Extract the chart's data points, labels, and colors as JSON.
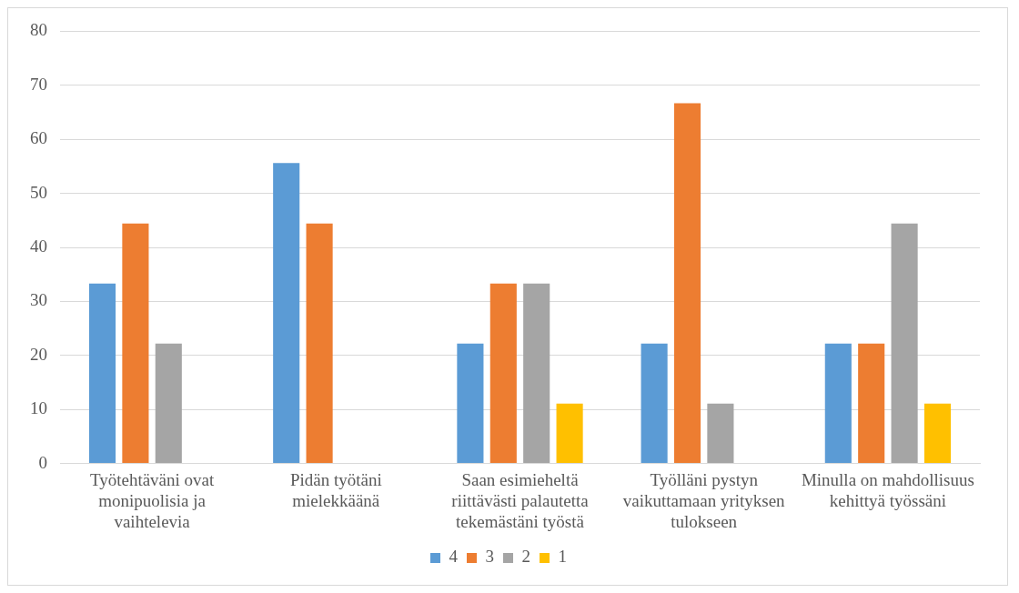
{
  "chart_data": {
    "type": "bar",
    "categories": [
      "Työtehtäväni ovat monipuolisia ja vaihtelevia",
      "Pidän työtäni mielekkäänä",
      "Saan esimieheltä riittävästi palautetta tekemästäni työstä",
      "Työlläni pystyn vaikuttamaan yrityksen tulokseen",
      "Minulla on mahdollisuus kehittyä työssäni"
    ],
    "series": [
      {
        "name": "4",
        "color": "#5b9bd5",
        "values": [
          33.3,
          55.6,
          22.2,
          22.2,
          22.2
        ]
      },
      {
        "name": "3",
        "color": "#ed7d31",
        "values": [
          44.4,
          44.4,
          33.3,
          66.7,
          22.2
        ]
      },
      {
        "name": "2",
        "color": "#a5a5a5",
        "values": [
          22.2,
          0,
          33.3,
          11.1,
          44.4
        ]
      },
      {
        "name": "1",
        "color": "#ffc000",
        "values": [
          0,
          0,
          11.1,
          0,
          11.1
        ]
      }
    ],
    "ylim": [
      0,
      80
    ],
    "yticks": [
      0,
      10,
      20,
      30,
      40,
      50,
      60,
      70,
      80
    ],
    "grid": "y",
    "legend": "bottom"
  }
}
